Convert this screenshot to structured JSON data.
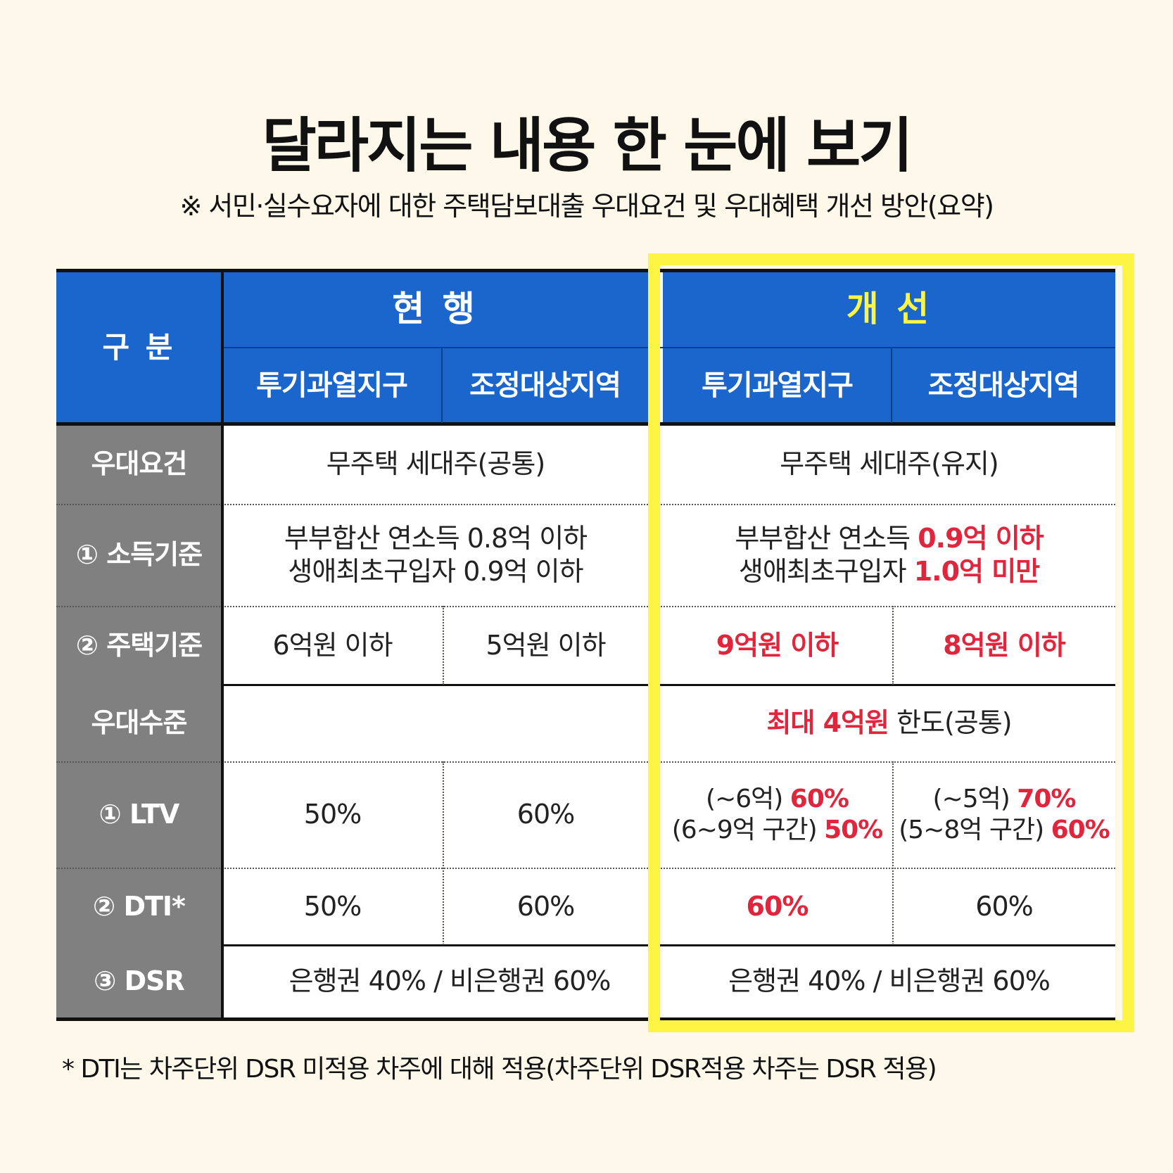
{
  "title": "달라지는 내용 한 눈에 보기",
  "subtitle": "※ 서민·실수요자에 대한 주택담보대출 우대요건 및 우대혜택 개선 방안(요약)",
  "header": {
    "category": "구 분",
    "current": "현 행",
    "improved": "개 선",
    "zone_speculation": "투기과열지구",
    "zone_adjustment": "조정대상지역"
  },
  "rows": {
    "eligibility": {
      "label": "우대요건",
      "current": "무주택 세대주(공통)",
      "improved": "무주택 세대주(유지)"
    },
    "income": {
      "label": "① 소득기준",
      "current_line1": "부부합산 연소득 0.8억 이하",
      "current_line2": "생애최초구입자 0.9억 이하",
      "improved_line1_prefix": "부부합산 연소득 ",
      "improved_line1_value": "0.9억 이하",
      "improved_line2_prefix": "생애최초구입자 ",
      "improved_line2_value": "1.0억 미만"
    },
    "housing": {
      "label": "② 주택기준",
      "current_spec": "6억원 이하",
      "current_adj": "5억원 이하",
      "improved_spec": "9억원 이하",
      "improved_adj": "8억원 이하"
    },
    "benefit_level": {
      "label": "우대수준",
      "improved_value": "최대 4억원",
      "improved_suffix": " 한도(공통)"
    },
    "ltv": {
      "label": "① LTV",
      "current_spec": "50%",
      "current_adj": "60%",
      "improved_spec_l1_prefix": "(~6억) ",
      "improved_spec_l1_value": "60%",
      "improved_spec_l2_prefix": "(6~9억 구간) ",
      "improved_spec_l2_value": "50%",
      "improved_adj_l1_prefix": "(~5억) ",
      "improved_adj_l1_value": "70%",
      "improved_adj_l2_prefix": "(5~8억 구간) ",
      "improved_adj_l2_value": "60%"
    },
    "dti": {
      "label": "② DTI*",
      "current_spec": "50%",
      "current_adj": "60%",
      "improved_spec": "60%",
      "improved_adj": "60%"
    },
    "dsr": {
      "label": "③ DSR",
      "current": "은행권 40% / 비은행권 60%",
      "improved": "은행권 40% / 비은행권 60%"
    }
  },
  "footnote": "* DTI는 차주단위 DSR 미적용 차주에 대해 적용(차주단위 DSR적용 차주는 DSR 적용)",
  "colors": {
    "background": "#fdf8ea",
    "header_blue": "#1a66cc",
    "side_gray": "#808080",
    "highlight_yellow": "#fdf443",
    "emphasis_red": "#e0253c"
  }
}
